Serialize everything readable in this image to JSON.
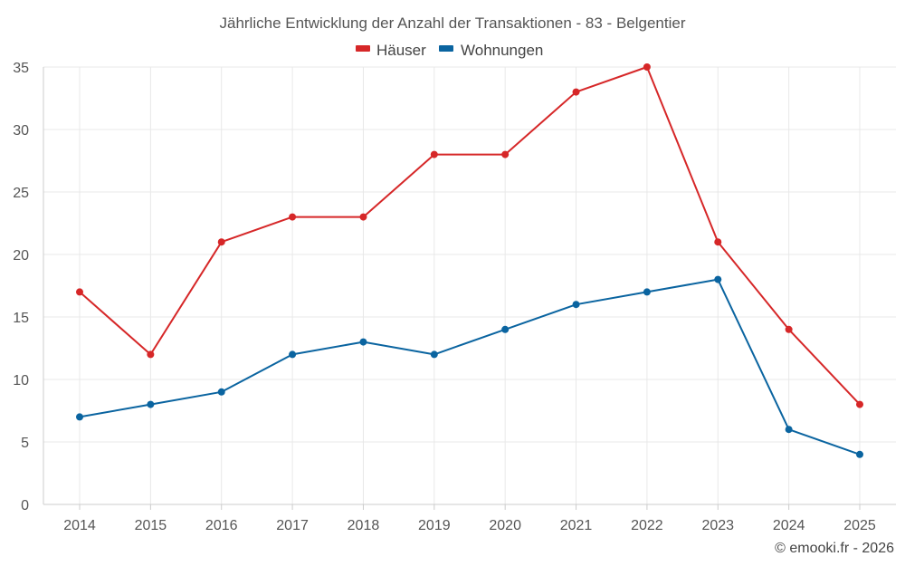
{
  "chart_data": {
    "type": "line",
    "title": "Jährliche Entwicklung der Anzahl der Transaktionen - 83 - Belgentier",
    "categories": [
      "2014",
      "2015",
      "2016",
      "2017",
      "2018",
      "2019",
      "2020",
      "2021",
      "2022",
      "2023",
      "2024",
      "2025"
    ],
    "series": [
      {
        "name": "Häuser",
        "color": "#d62728",
        "values": [
          17,
          12,
          21,
          23,
          23,
          28,
          28,
          33,
          35,
          21,
          14,
          8
        ]
      },
      {
        "name": "Wohnungen",
        "color": "#0a64a0",
        "values": [
          7,
          8,
          9,
          12,
          13,
          12,
          14,
          16,
          17,
          18,
          6,
          4
        ]
      }
    ],
    "ylim": [
      0,
      35
    ],
    "yticks": [
      "0",
      "5",
      "10",
      "15",
      "20",
      "25",
      "30",
      "35"
    ],
    "grid": true,
    "legend": "top-center",
    "credit": "© emooki.fr - 2026"
  }
}
